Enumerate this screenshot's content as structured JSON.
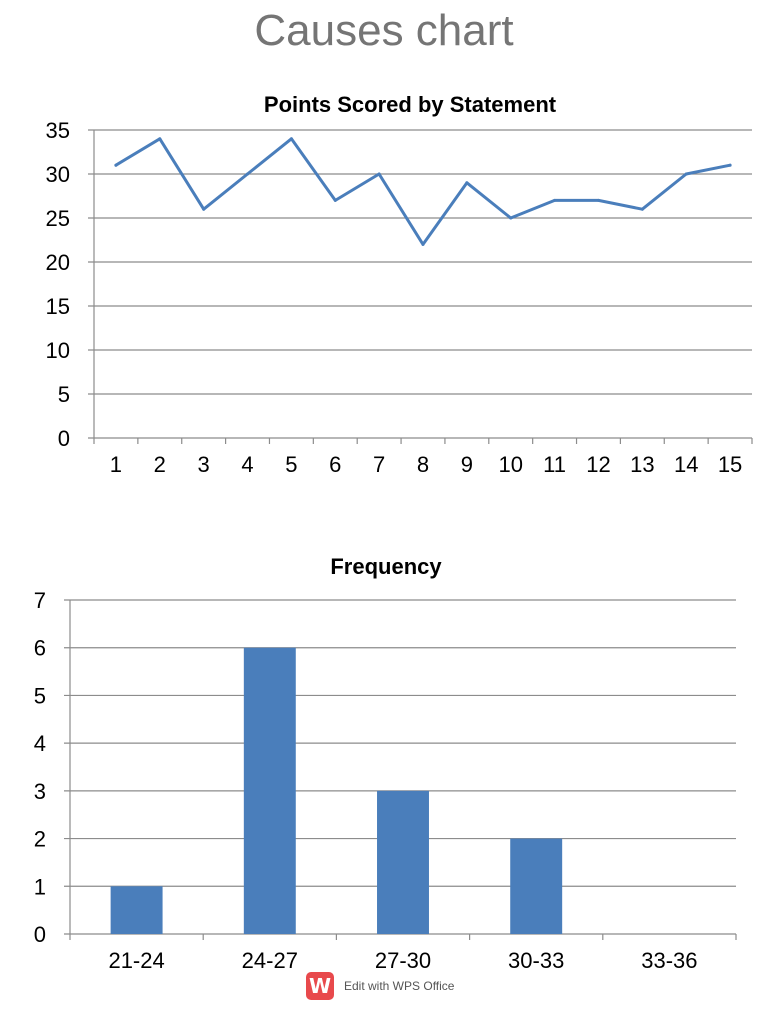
{
  "page": {
    "title": "Causes chart"
  },
  "footer": {
    "logo_icon": "wps-office-logo-icon",
    "logo_glyph": "W",
    "text": "Edit with WPS Office"
  },
  "colors": {
    "series": "#4a7ebb",
    "grid": "#8c8c8c",
    "title": "#757575"
  },
  "chart_data": [
    {
      "type": "line",
      "title": "Points Scored by Statement",
      "x": [
        1,
        2,
        3,
        4,
        5,
        6,
        7,
        8,
        9,
        10,
        11,
        12,
        13,
        14,
        15
      ],
      "series": [
        {
          "values": [
            31,
            34,
            26,
            30,
            34,
            27,
            30,
            22,
            29,
            25,
            27,
            27,
            26,
            30,
            31
          ]
        }
      ],
      "xlabel": "",
      "ylabel": "",
      "ylim": [
        0,
        35
      ],
      "yticks": [
        0,
        5,
        10,
        15,
        20,
        25,
        30,
        35
      ],
      "grid": true,
      "legend": "none"
    },
    {
      "type": "bar",
      "title": "Frequency",
      "categories": [
        "21-24",
        "24-27",
        "27-30",
        "30-33",
        "33-36"
      ],
      "values": [
        1,
        6,
        3,
        2,
        0
      ],
      "xlabel": "",
      "ylabel": "",
      "ylim": [
        0,
        7
      ],
      "yticks": [
        0,
        1,
        2,
        3,
        4,
        5,
        6,
        7
      ],
      "grid": true,
      "legend": "none"
    }
  ]
}
